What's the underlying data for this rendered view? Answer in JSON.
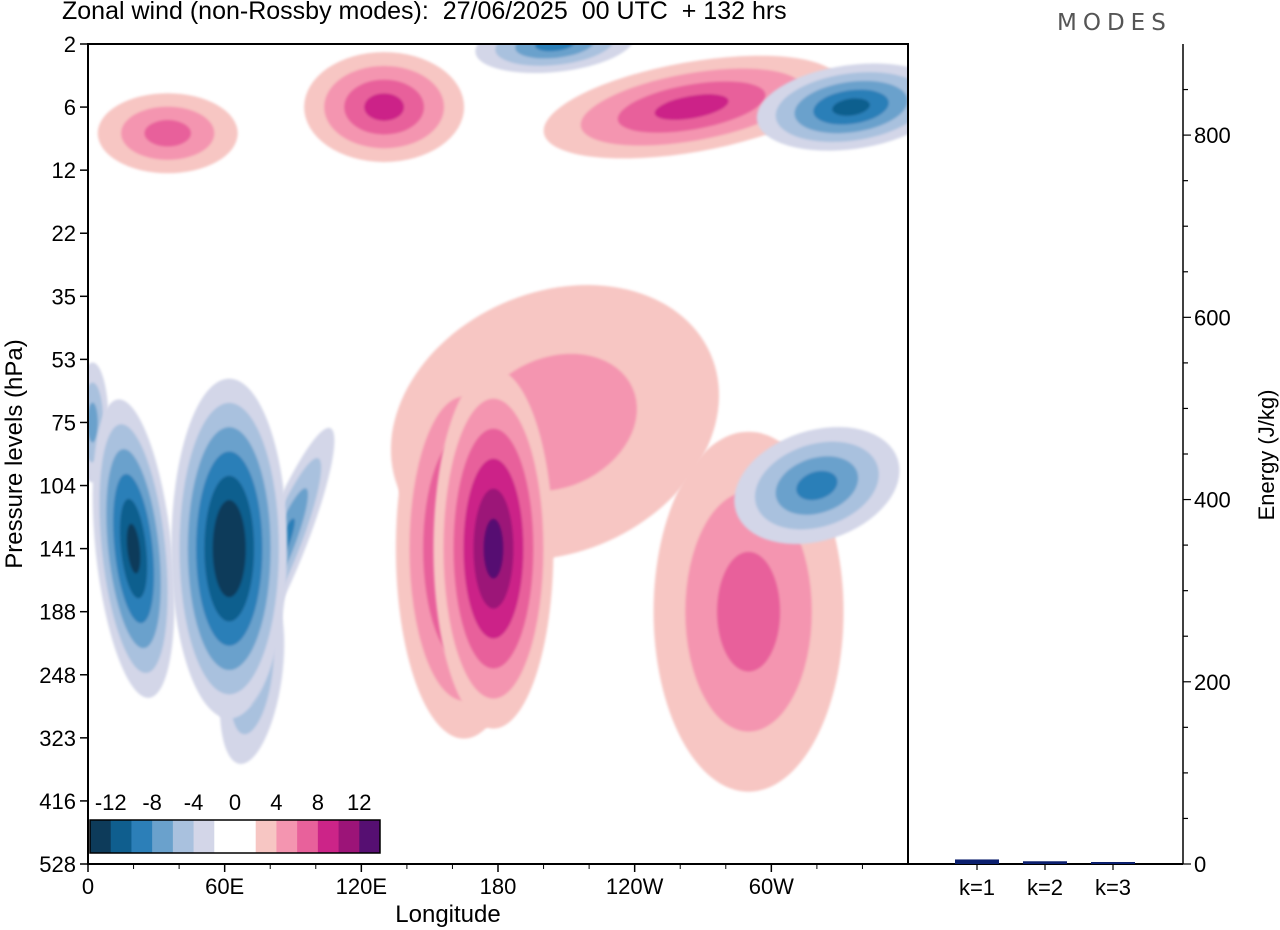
{
  "page_title": "Zonal wind (non-Rossby modes):  27/06/2025  00 UTC  + 132 hrs",
  "brand": "MODES",
  "chart_data": [
    {
      "type": "heatmap",
      "title": "Zonal wind (non-Rossby modes):  27/06/2025  00 UTC  + 132 hrs",
      "xlabel": "Longitude",
      "ylabel": "Pressure levels (hPa)",
      "xticks": [
        "0",
        "60E",
        "120E",
        "180",
        "120W",
        "60W"
      ],
      "yticks": [
        "2",
        "6",
        "12",
        "22",
        "35",
        "53",
        "75",
        "104",
        "141",
        "188",
        "248",
        "323",
        "416",
        "528"
      ],
      "colorbar": {
        "labels": [
          "-12",
          "-8",
          "-4",
          "0",
          "4",
          "8",
          "12"
        ],
        "levels": [
          -14,
          -12,
          -10,
          -8,
          -6,
          -4,
          -2,
          0,
          2,
          4,
          6,
          8,
          10,
          12,
          14
        ],
        "colors": [
          "#0d3b5a",
          "#0f5e8e",
          "#2c7fb8",
          "#6aa1cc",
          "#a9c1de",
          "#d3d6e8",
          "#ffffff",
          "#ffffff",
          "#f7c6c3",
          "#f495b0",
          "#e8619b",
          "#cc2488",
          "#9c1478",
          "#560f72"
        ]
      },
      "features": [
        {
          "lon": 20,
          "level": 141,
          "value": -12
        },
        {
          "lon": 62,
          "level": 141,
          "value": -14
        },
        {
          "lon": 85,
          "level": 141,
          "value": -9
        },
        {
          "lon": 72,
          "level": 248,
          "value": -7
        },
        {
          "lon": 2,
          "level": 75,
          "value": -7
        },
        {
          "lon": 165,
          "level": 141,
          "value": 10
        },
        {
          "lon": 178,
          "level": 141,
          "value": 13
        },
        {
          "lon": 205,
          "level": 75,
          "value": 4
        },
        {
          "lon": 290,
          "level": 188,
          "value": 6
        },
        {
          "lon": 320,
          "level": 104,
          "value": -9
        },
        {
          "lon": 335,
          "level": 6,
          "value": -10
        },
        {
          "lon": 265,
          "level": 6,
          "value": 8
        },
        {
          "lon": 205,
          "level": 2,
          "value": -8
        },
        {
          "lon": 130,
          "level": 6,
          "value": 9
        },
        {
          "lon": 35,
          "level": 8,
          "value": 6
        }
      ]
    },
    {
      "type": "bar",
      "ylabel": "Energy (J/kg)",
      "categories": [
        "k=1",
        "k=2",
        "k=3"
      ],
      "values": [
        5,
        3,
        1
      ],
      "ylim": [
        0,
        900
      ],
      "yticks": [
        0,
        200,
        400,
        600,
        800
      ],
      "bar_color": "#0b1f6e"
    }
  ]
}
